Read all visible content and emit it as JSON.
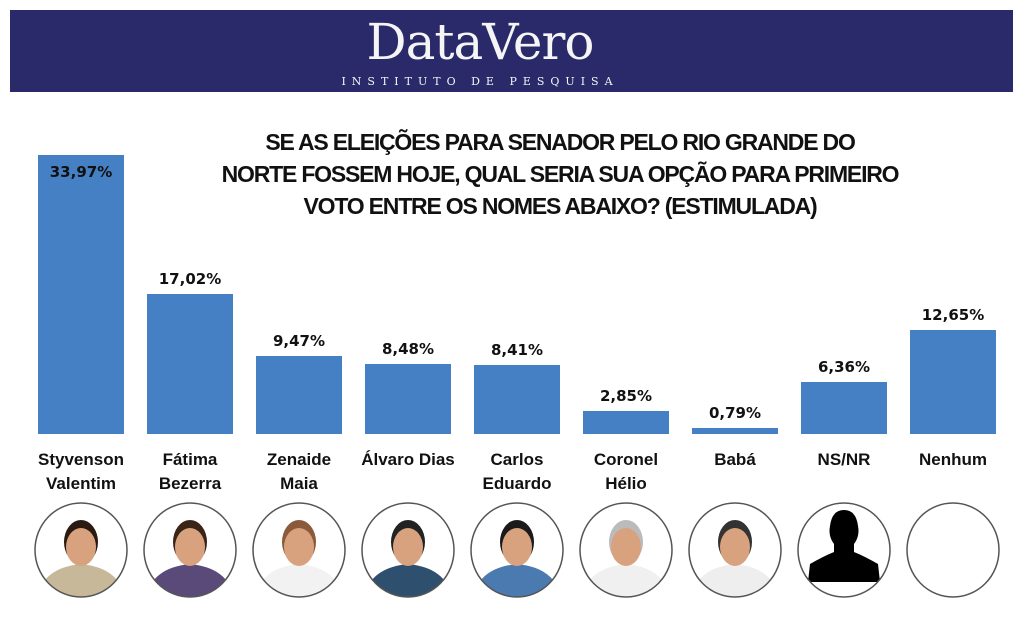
{
  "header": {
    "logo_text": "DataVero",
    "logo_subtitle": "INSTITUTO DE PESQUISA",
    "background_color": "#2a2a6b"
  },
  "chart_data": {
    "type": "bar",
    "title_lines": [
      "SE AS ELEIÇÕES PARA SENADOR PELO RIO GRANDE DO",
      "NORTE FOSSEM HOJE, QUAL SERIA SUA OPÇÃO PARA PRIMEIRO",
      "VOTO ENTRE OS NOMES ABAIXO? (ESTIMULADA)"
    ],
    "categories": [
      [
        "Styvenson",
        "Valentim"
      ],
      [
        "Fátima",
        "Bezerra"
      ],
      [
        "Zenaide",
        "Maia"
      ],
      [
        "Álvaro Dias"
      ],
      [
        "Carlos",
        "Eduardo"
      ],
      [
        "Coronel",
        "Hélio"
      ],
      [
        "Babá"
      ],
      [
        "NS/NR"
      ],
      [
        "Nenhum"
      ]
    ],
    "values": [
      33.97,
      17.02,
      9.47,
      8.48,
      8.41,
      2.85,
      0.79,
      6.36,
      12.65
    ],
    "value_labels": [
      "33,97%",
      "17,02%",
      "9,47%",
      "8,48%",
      "8,41%",
      "2,85%",
      "0,79%",
      "6,36%",
      "12,65%"
    ],
    "bar_color": "#4580c4",
    "ylim": [
      0,
      34
    ],
    "grid": false,
    "photos": [
      "photo",
      "photo",
      "photo",
      "photo",
      "photo",
      "photo",
      "photo",
      "silhouette",
      "empty"
    ]
  }
}
